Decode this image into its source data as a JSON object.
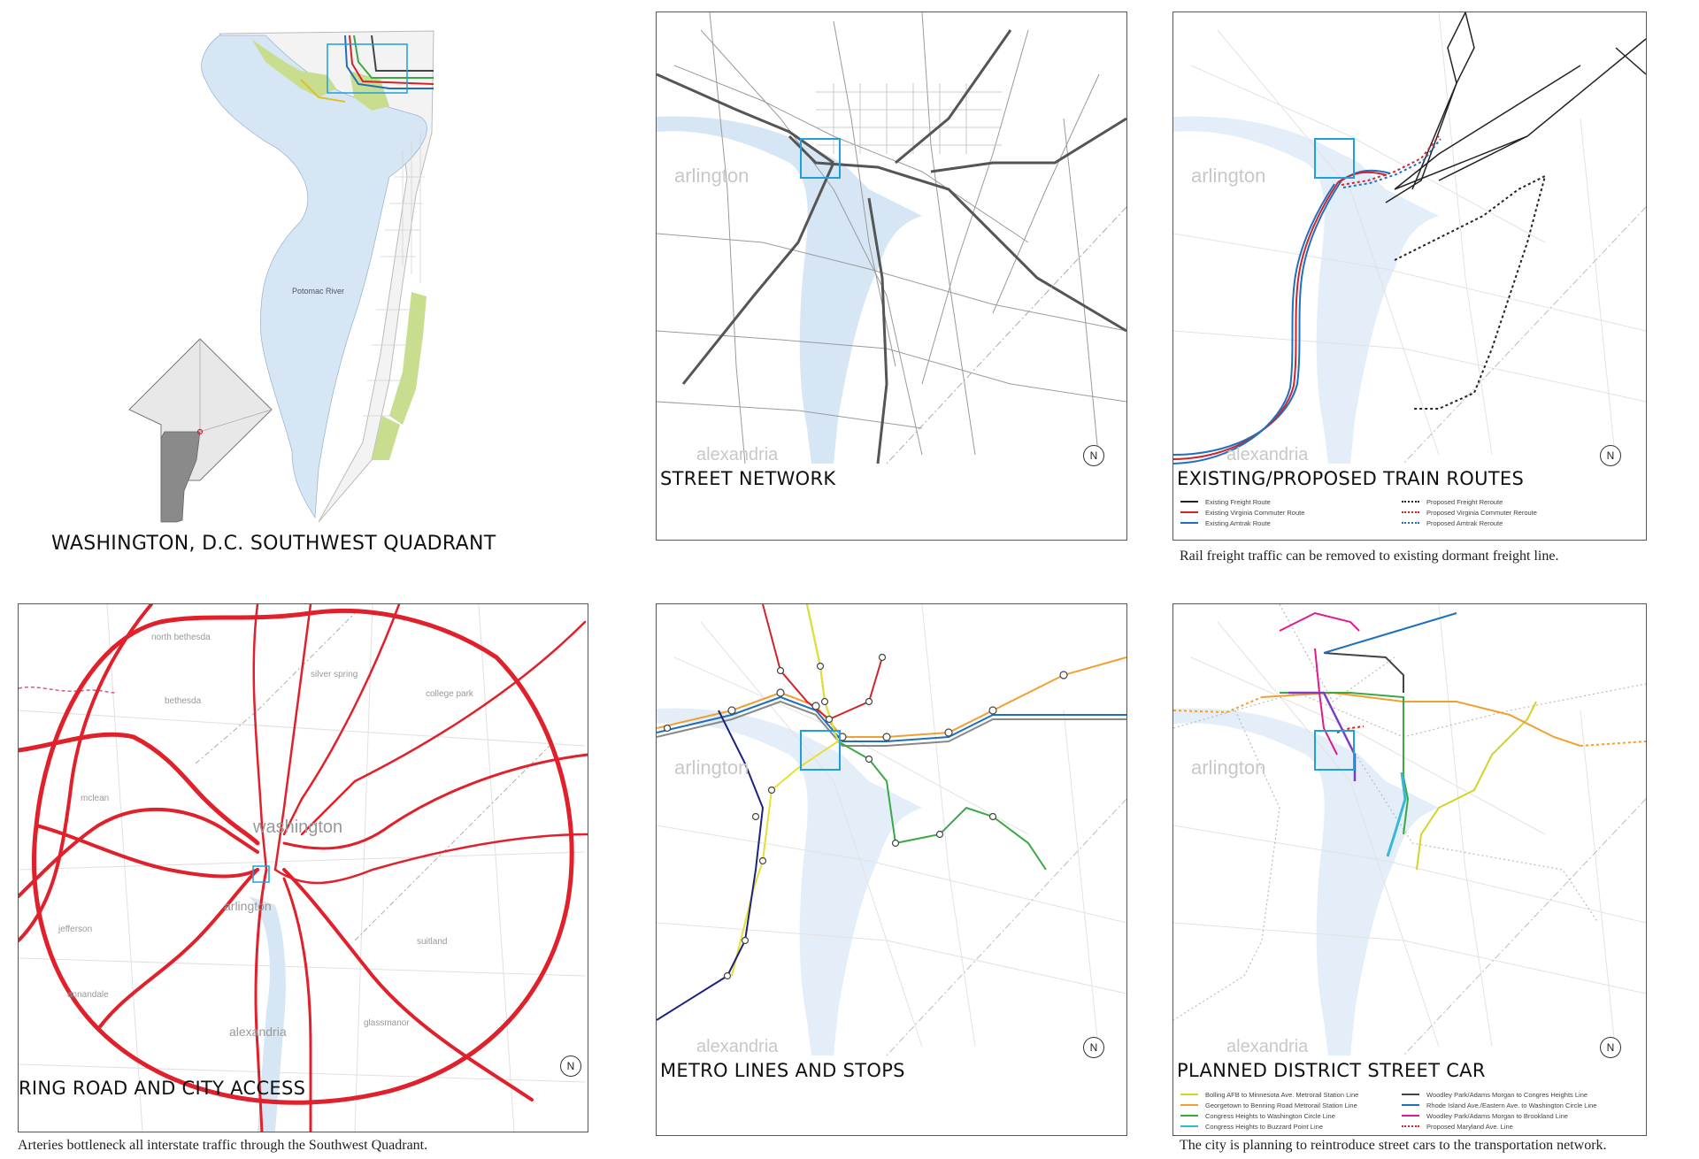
{
  "overview": {
    "title": "WASHINGTON, D.C. SOUTHWEST QUADRANT",
    "river_label": "Potomac River"
  },
  "panels": {
    "street": {
      "title": "STREET NETWORK"
    },
    "train": {
      "title": "EXISTING/PROPOSED TRAIN ROUTES",
      "caption": "Rail freight traffic can be removed to existing dormant freight line.",
      "legend": [
        {
          "label": "Existing Freight Route",
          "color": "#222222",
          "style": "solid"
        },
        {
          "label": "Existing Virginia Commuter Route",
          "color": "#d2232a",
          "style": "solid"
        },
        {
          "label": "Existing Amtrak Route",
          "color": "#1f6fc0",
          "style": "solid"
        },
        {
          "label": "Proposed Freight Reroute",
          "color": "#222222",
          "style": "dotted"
        },
        {
          "label": "Proposed Virginia Commuter Reroute",
          "color": "#d2232a",
          "style": "dotted"
        },
        {
          "label": "Proposed Amtrak Reroute",
          "color": "#1f6fc0",
          "style": "dotted"
        }
      ]
    },
    "ring": {
      "title": "RING ROAD AND CITY ACCESS",
      "caption": "Arteries bottleneck all interstate traffic through the Southwest Quadrant.",
      "labels": [
        "north bethesda",
        "silver spring",
        "college park",
        "bethesda",
        "mclean",
        "washington",
        "arlington",
        "jefferson",
        "annandale",
        "alexandria",
        "glassmanor",
        "suitland"
      ]
    },
    "metro": {
      "title": "METRO LINES AND STOPS"
    },
    "streetcar": {
      "title": "PLANNED DISTRICT STREET CAR",
      "caption": "The city is planning to reintroduce street cars to the transportation network.",
      "legend": [
        {
          "label": "Bolling AFB to Minnesota Ave. Metrorail Station Line",
          "color": "#d4d428",
          "style": "solid"
        },
        {
          "label": "Georgetown to Benning Road Metrorail Station Line",
          "color": "#f0a030",
          "style": "solid"
        },
        {
          "label": "Congress Heights to Washington Circle Line",
          "color": "#3aa845",
          "style": "solid"
        },
        {
          "label": "Congress Heights to Buzzard Point Line",
          "color": "#36b8d8",
          "style": "solid"
        },
        {
          "label": "Woodley Park/Adams Morgan to Congres Heights Line",
          "color": "#444444",
          "style": "solid"
        },
        {
          "label": "Rhode Island Ave./Eastern Ave. to Washington Circle Line",
          "color": "#1f6fc0",
          "style": "solid"
        },
        {
          "label": "Woodley Park/Adams Morgan to Brookland Line",
          "color": "#e0198c",
          "style": "solid"
        },
        {
          "label": "Proposed Maryland Ave. Line",
          "color": "#d2232a",
          "style": "dotted"
        }
      ]
    }
  },
  "map_labels": {
    "arlington": "arlington",
    "alexandria": "alexandria",
    "north": "N"
  },
  "colors": {
    "water": "#d6e6f4",
    "park": "#c9dd8e",
    "focus_box": "#1ea0e0",
    "ring_road": "#e0202a",
    "panel_border": "#555555"
  }
}
